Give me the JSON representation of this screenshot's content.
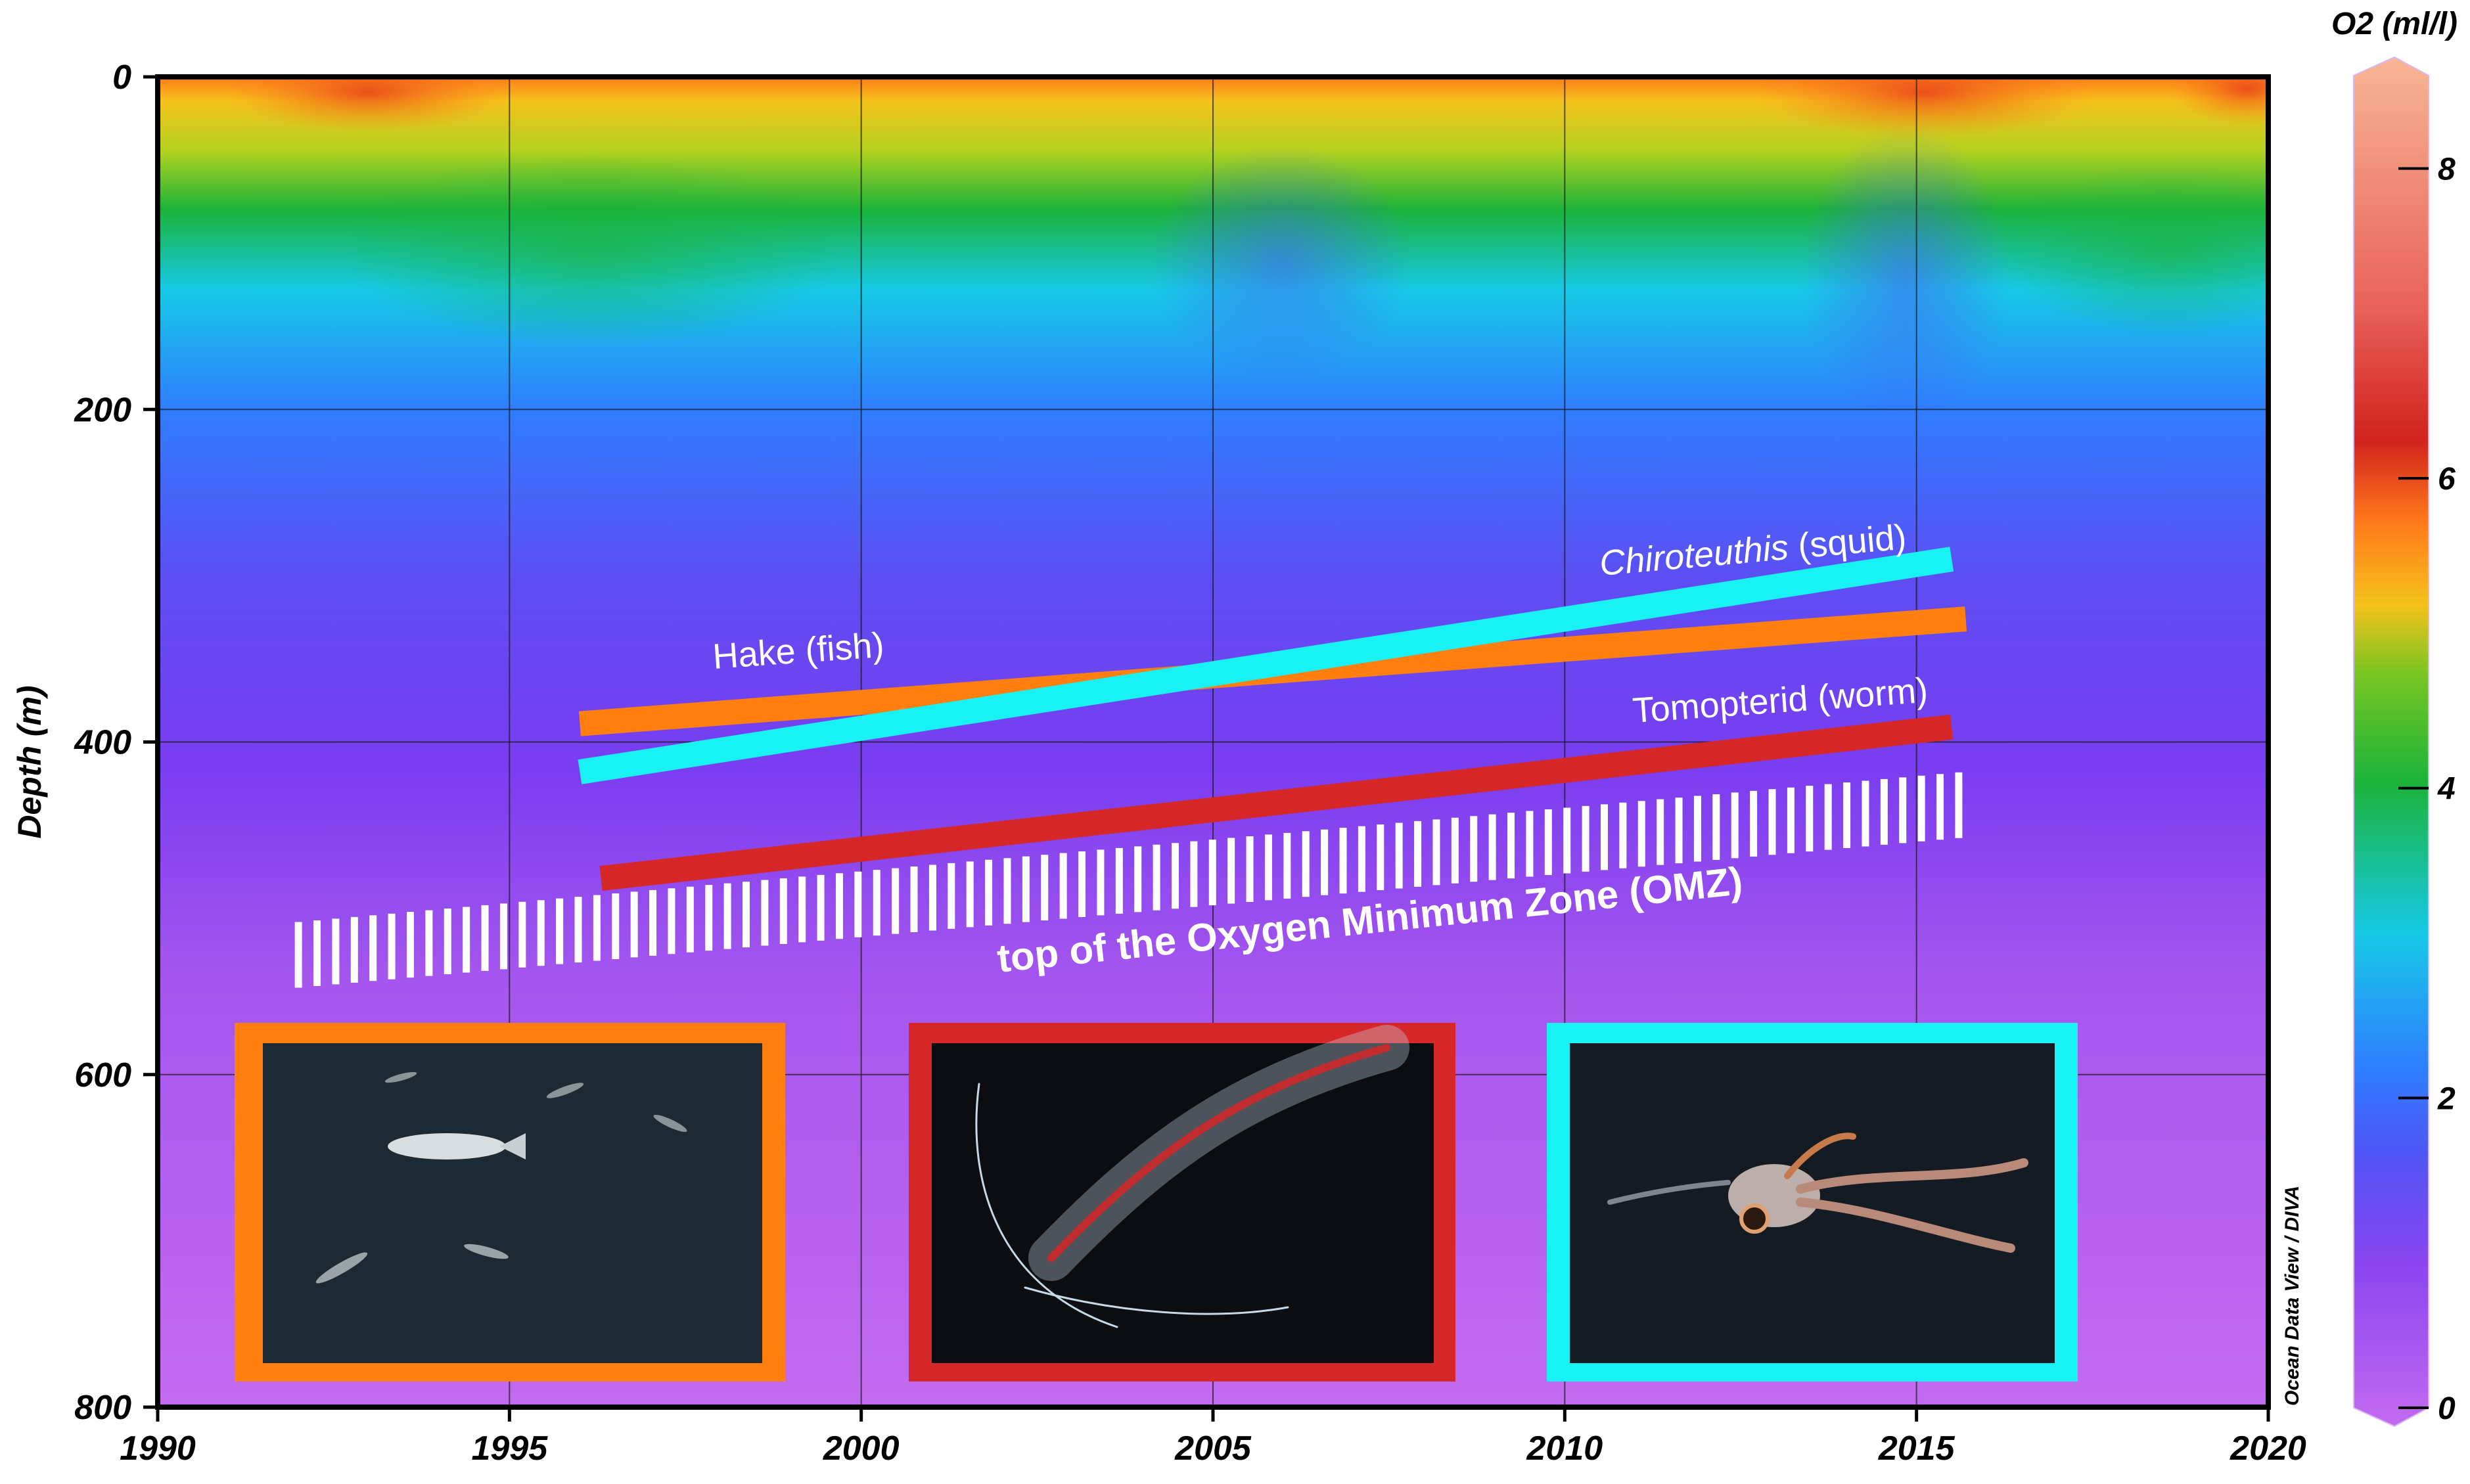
{
  "chart_data": {
    "type": "heatmap",
    "title": "",
    "xlabel": "",
    "ylabel": "Depth (m)",
    "xlim": [
      1990,
      2020
    ],
    "ylim": [
      0,
      800
    ],
    "y_inverted": true,
    "xticks": [
      1990,
      1995,
      2000,
      2005,
      2010,
      2015,
      2020
    ],
    "yticks": [
      0,
      200,
      400,
      600,
      800
    ],
    "grid": true,
    "colorbar": {
      "label": "O2 (ml/l)",
      "range": [
        0,
        8.6
      ],
      "ticks": [
        0,
        2,
        4,
        6,
        8
      ],
      "colormap": [
        "#c36af0",
        "#7a3df0",
        "#2f7dff",
        "#16c9e6",
        "#1bb33a",
        "#f5c21b",
        "#ff7a1a",
        "#d1231d",
        "#f7b694"
      ]
    },
    "field_description_by_depth_o2": [
      {
        "depth": 0,
        "o2": 5.5
      },
      {
        "depth": 50,
        "o2": 3.8
      },
      {
        "depth": 120,
        "o2": 2.6
      },
      {
        "depth": 200,
        "o2": 1.9
      },
      {
        "depth": 300,
        "o2": 1.3
      },
      {
        "depth": 400,
        "o2": 0.9
      },
      {
        "depth": 500,
        "o2": 0.6
      },
      {
        "depth": 600,
        "o2": 0.4
      },
      {
        "depth": 800,
        "o2": 0.3
      }
    ],
    "trend_lines": [
      {
        "name": "Hake (fish)",
        "color": "#ff7f11",
        "x": [
          1996,
          2015.7
        ],
        "y": [
          389,
          326
        ]
      },
      {
        "name": "Chiroteuthis (squid)",
        "color": "#19f2f5",
        "x": [
          1996,
          2015.5
        ],
        "y": [
          418,
          290
        ]
      },
      {
        "name": "Tomopterid (worm)",
        "color": "#d62728",
        "x": [
          1996.3,
          2015.5
        ],
        "y": [
          482,
          391
        ]
      },
      {
        "name": "top of the Oxygen Minimum Zone (OMZ)",
        "color": "#ffffff",
        "style": "hatched",
        "x": [
          1992,
          2015.6
        ],
        "y": [
          528,
          438
        ]
      }
    ],
    "annotations": [
      {
        "text_prefix": "",
        "text_italic": "",
        "text": "Hake (fish)"
      },
      {
        "text_prefix": "",
        "text_italic": "Chiroteuthis",
        "text": " (squid)"
      },
      {
        "text_prefix": "",
        "text_italic": "",
        "text": "Tomopterid (worm)"
      },
      {
        "text_prefix": "",
        "text_italic": "",
        "text": "top of the Oxygen Minimum Zone (OMZ)"
      }
    ],
    "photos": [
      {
        "name": "hake-photo",
        "border": "#ff7f11"
      },
      {
        "name": "tomopterid-photo",
        "border": "#d62728"
      },
      {
        "name": "squid-photo",
        "border": "#19f2f5"
      }
    ],
    "credit": "Ocean Data View / DIVA"
  }
}
